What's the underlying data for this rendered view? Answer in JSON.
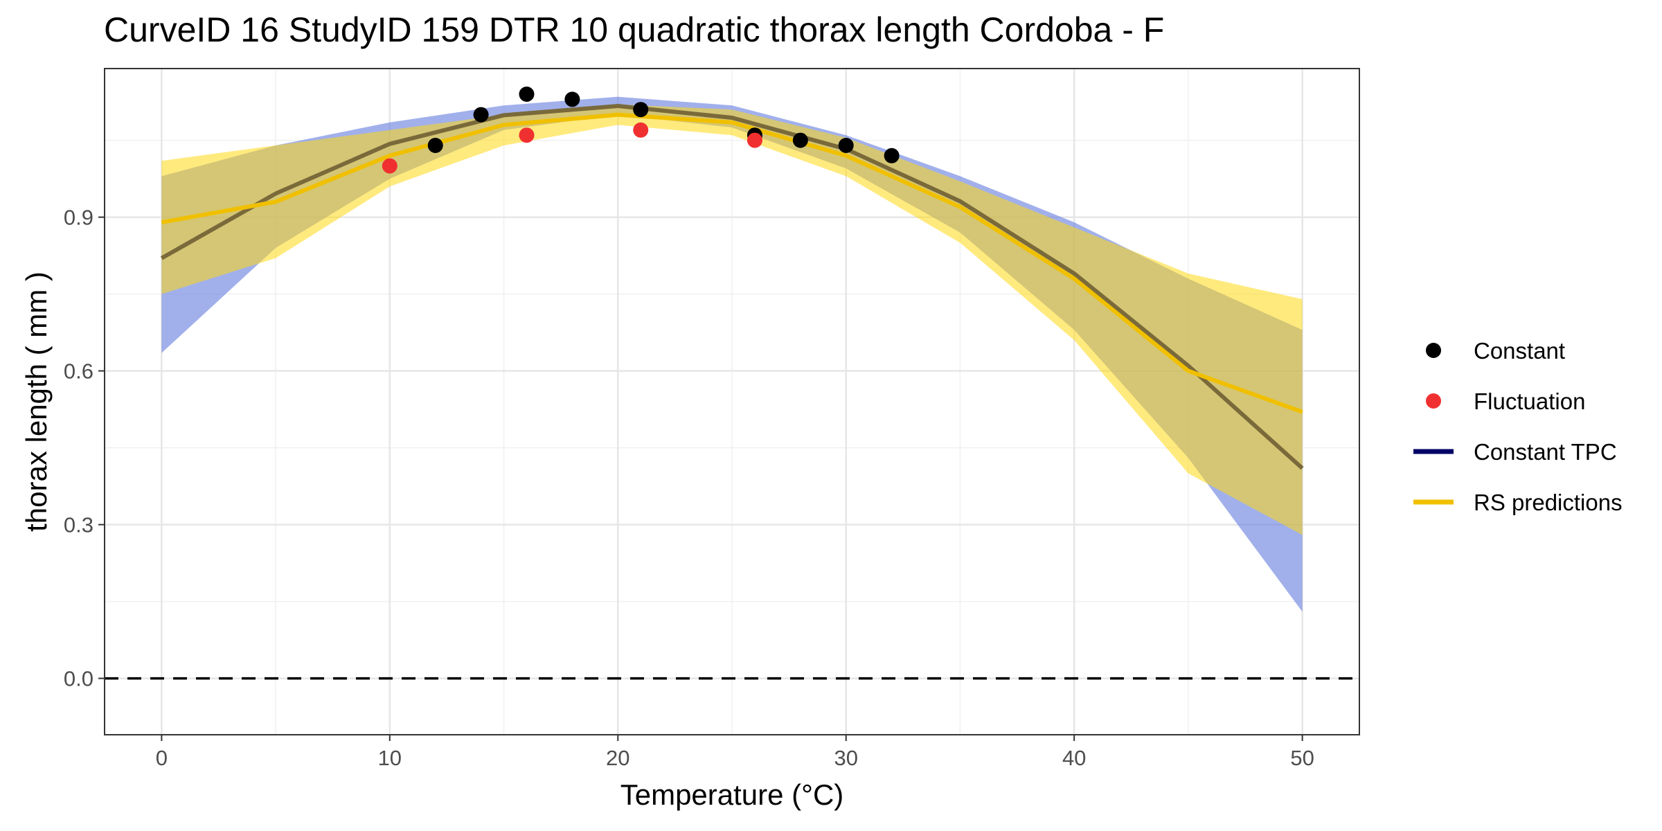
{
  "chart_data": {
    "type": "line",
    "title": "CurveID 16 StudyID 159 DTR 10 quadratic thorax length Cordoba - F",
    "xlabel": "Temperature (°C)",
    "ylabel": "thorax length ( mm )",
    "xlim": [
      -2.5,
      52.5
    ],
    "ylim": [
      -0.11,
      1.19
    ],
    "x_ticks": [
      0,
      10,
      20,
      30,
      40,
      50
    ],
    "y_ticks": [
      0.0,
      0.3,
      0.6,
      0.9
    ],
    "y_tick_labels": [
      "0.0",
      "0.3",
      "0.6",
      "0.9"
    ],
    "grid": true,
    "reference_line": {
      "y": 0.0,
      "style": "dashed"
    },
    "legend_position": "right",
    "series": [
      {
        "name": "Constant",
        "kind": "points",
        "color": "#000000",
        "x": [
          12,
          14,
          16,
          18,
          21,
          26,
          28,
          30,
          32
        ],
        "y": [
          1.04,
          1.1,
          1.14,
          1.13,
          1.11,
          1.06,
          1.05,
          1.04,
          1.02
        ]
      },
      {
        "name": "Fluctuation",
        "kind": "points",
        "color": "#f03030",
        "x": [
          10,
          16,
          21,
          26
        ],
        "y": [
          1.0,
          1.06,
          1.07,
          1.05
        ]
      },
      {
        "name": "Constant TPC",
        "kind": "line",
        "color": "#000066",
        "x": [
          0,
          5,
          10,
          15,
          20,
          25,
          30,
          35,
          40,
          45,
          50
        ],
        "y": [
          0.82,
          0.946,
          1.043,
          1.099,
          1.117,
          1.094,
          1.033,
          0.931,
          0.79,
          0.61,
          0.41
        ],
        "band_color": "#6f86e0",
        "band_lower": [
          0.635,
          0.84,
          0.975,
          1.07,
          1.1,
          1.075,
          0.995,
          0.87,
          0.68,
          0.43,
          0.13
        ],
        "band_upper": [
          0.98,
          1.04,
          1.085,
          1.118,
          1.135,
          1.118,
          1.06,
          0.98,
          0.89,
          0.78,
          0.68
        ]
      },
      {
        "name": "RS predictions",
        "kind": "line",
        "color": "#f0c000",
        "x": [
          0,
          5,
          10,
          15,
          20,
          25,
          30,
          35,
          40,
          45,
          50
        ],
        "y": [
          0.89,
          0.93,
          1.02,
          1.08,
          1.1,
          1.085,
          1.02,
          0.92,
          0.78,
          0.6,
          0.52
        ],
        "band_color": "#ffd814",
        "band_lower": [
          0.75,
          0.82,
          0.96,
          1.04,
          1.08,
          1.06,
          0.98,
          0.85,
          0.66,
          0.4,
          0.28
        ],
        "band_upper": [
          1.01,
          1.04,
          1.07,
          1.1,
          1.12,
          1.11,
          1.055,
          0.97,
          0.88,
          0.79,
          0.74
        ]
      }
    ]
  }
}
